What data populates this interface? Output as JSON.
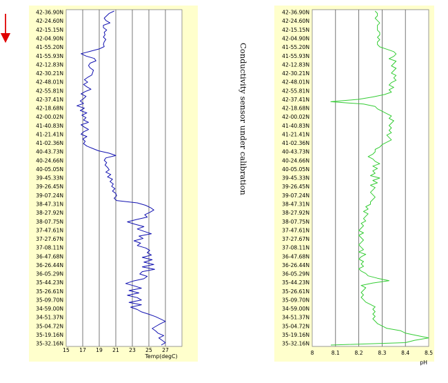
{
  "annotation": {
    "arrow_color": "#e00000",
    "side_text": "Conductivity sensor under calibration"
  },
  "chart_data": [
    {
      "type": "line",
      "title": "",
      "xlabel": "Temp(degC)",
      "ylabel": "",
      "xlim": [
        15,
        29
      ],
      "xticks": [
        15,
        17,
        19,
        21,
        23,
        25,
        27
      ],
      "grid": true,
      "line_color": "#1010b0",
      "background": "#ffffcc",
      "y_labels": [
        "42-36.90N",
        "42-24.60N",
        "42-15.15N",
        "42-04.90N",
        "41-55.20N",
        "41-55.93N",
        "42-12.83N",
        "42-30.21N",
        "42-48.01N",
        "42-55.81N",
        "42-37.41N",
        "42-18.68N",
        "42-00.02N",
        "41-40.83N",
        "41-21.41N",
        "41-02.36N",
        "40-43.73N",
        "40-24.66N",
        "40-05.05N",
        "39-45.33N",
        "39-26.45N",
        "39-07.24N",
        "38-47.31N",
        "38-27.92N",
        "38-07.75N",
        "37-47.61N",
        "37-27.67N",
        "37-08.11N",
        "36-47.68N",
        "36-26.44N",
        "36-05.29N",
        "35-44.23N",
        "35-26.61N",
        "35-09.70N",
        "34-59.00N",
        "34-51.37N",
        "35-04.72N",
        "35-19.16N",
        "35-32.16N"
      ],
      "series": [
        {
          "values": [
            20.8,
            20.2,
            19.9,
            19.6,
            19.8,
            20.3,
            19.5,
            19.5,
            19.9,
            19.6,
            19.7,
            19.5,
            19.8,
            19.6,
            19.5,
            19.6,
            19.0,
            17.9,
            16.8,
            17.4,
            18.4,
            18.6,
            17.9,
            17.7,
            17.9,
            18.3,
            18.2,
            18.1,
            17.6,
            17.2,
            17.6,
            17.1,
            17.5,
            18.0,
            17.3,
            16.8,
            17.4,
            17.1,
            16.7,
            17.1,
            16.3,
            17.2,
            16.7,
            17.5,
            16.9,
            17.4,
            17.1,
            17.7,
            16.8,
            17.2,
            17.7,
            17.1,
            16.8,
            17.5,
            17.0,
            17.3,
            17.1,
            17.5,
            18.2,
            18.9,
            20.2,
            21.0,
            19.8,
            19.6,
            19.9,
            19.7,
            20.0,
            20.2,
            19.8,
            20.4,
            20.0,
            20.6,
            20.3,
            20.7,
            20.5,
            20.9,
            20.6,
            21.0,
            21.1,
            20.8,
            21.1,
            23.6,
            24.6,
            25.2,
            25.6,
            25.1,
            24.5,
            24.8,
            23.5,
            22.4,
            23.3,
            24.4,
            23.6,
            24.4,
            25.3,
            23.8,
            24.3,
            23.2,
            24.0,
            23.6,
            24.6,
            25.1,
            24.8,
            25.3,
            24.2,
            25.4,
            24.4,
            25.6,
            24.2,
            25.7,
            24.2,
            23.9,
            24.8,
            24.4,
            23.1,
            22.2,
            23.2,
            24.1,
            22.6,
            23.8,
            22.4,
            23.6,
            24.1,
            22.6,
            24.1,
            22.8,
            23.6,
            24.1,
            25.0,
            25.8,
            26.4,
            27.0,
            26.4,
            25.9,
            25.4,
            25.8,
            26.1,
            26.8,
            26.2,
            26.6,
            27.0,
            26.5
          ]
        }
      ]
    },
    {
      "type": "line",
      "title": "",
      "xlabel": "pH",
      "ylabel": "",
      "xlim": [
        8,
        8.5
      ],
      "xticks": [
        8,
        8.1,
        8.2,
        8.3,
        8.4,
        8.5
      ],
      "grid": true,
      "line_color": "#33cc33",
      "background": "#ffffcc",
      "y_labels": [
        "42-36.90N",
        "42-24.60N",
        "42-15.15N",
        "42-04.90N",
        "41-55.20N",
        "41-55.93N",
        "42-12.83N",
        "42-30.21N",
        "42-48.01N",
        "42-55.81N",
        "42-37.41N",
        "42-18.68N",
        "42-00.02N",
        "41-40.83N",
        "41-21.41N",
        "41-02.36N",
        "40-43.73N",
        "40-24.66N",
        "40-05.05N",
        "39-45.33N",
        "39-26.45N",
        "39-07.24N",
        "38-47.31N",
        "38-27.92N",
        "38-07.75N",
        "37-47.61N",
        "37-27.67N",
        "37-08.11N",
        "36-47.68N",
        "36-26.44N",
        "36-05.29N",
        "35-44.23N",
        "35-26.61N",
        "35-09.70N",
        "34-59.00N",
        "34-51.37N",
        "35-04.72N",
        "35-19.16N",
        "35-32.16N"
      ],
      "series": [
        {
          "values": [
            8.27,
            8.28,
            8.28,
            8.27,
            8.28,
            8.29,
            8.28,
            8.28,
            8.28,
            8.29,
            8.29,
            8.28,
            8.29,
            8.28,
            8.28,
            8.29,
            8.32,
            8.35,
            8.36,
            8.35,
            8.33,
            8.36,
            8.35,
            8.34,
            8.36,
            8.35,
            8.34,
            8.36,
            8.35,
            8.36,
            8.34,
            8.33,
            8.35,
            8.33,
            8.34,
            8.31,
            8.26,
            8.2,
            8.08,
            8.22,
            8.27,
            8.28,
            8.3,
            8.32,
            8.34,
            8.33,
            8.35,
            8.34,
            8.33,
            8.34,
            8.33,
            8.34,
            8.32,
            8.33,
            8.34,
            8.32,
            8.3,
            8.29,
            8.27,
            8.27,
            8.26,
            8.24,
            8.26,
            8.27,
            8.29,
            8.26,
            8.28,
            8.26,
            8.27,
            8.25,
            8.29,
            8.26,
            8.28,
            8.25,
            8.27,
            8.26,
            8.25,
            8.26,
            8.27,
            8.26,
            8.25,
            8.25,
            8.23,
            8.24,
            8.22,
            8.24,
            8.23,
            8.22,
            8.23,
            8.21,
            8.22,
            8.21,
            8.2,
            8.22,
            8.2,
            8.21,
            8.22,
            8.21,
            8.2,
            8.21,
            8.22,
            8.2,
            8.23,
            8.21,
            8.2,
            8.22,
            8.21,
            8.22,
            8.2,
            8.21,
            8.23,
            8.24,
            8.28,
            8.33,
            8.26,
            8.21,
            8.23,
            8.22,
            8.21,
            8.22,
            8.21,
            8.22,
            8.23,
            8.25,
            8.27,
            8.26,
            8.27,
            8.26,
            8.27,
            8.26,
            8.27,
            8.28,
            8.3,
            8.32,
            8.38,
            8.4,
            8.45,
            8.5,
            8.44,
            8.4,
            8.08
          ]
        }
      ]
    }
  ]
}
